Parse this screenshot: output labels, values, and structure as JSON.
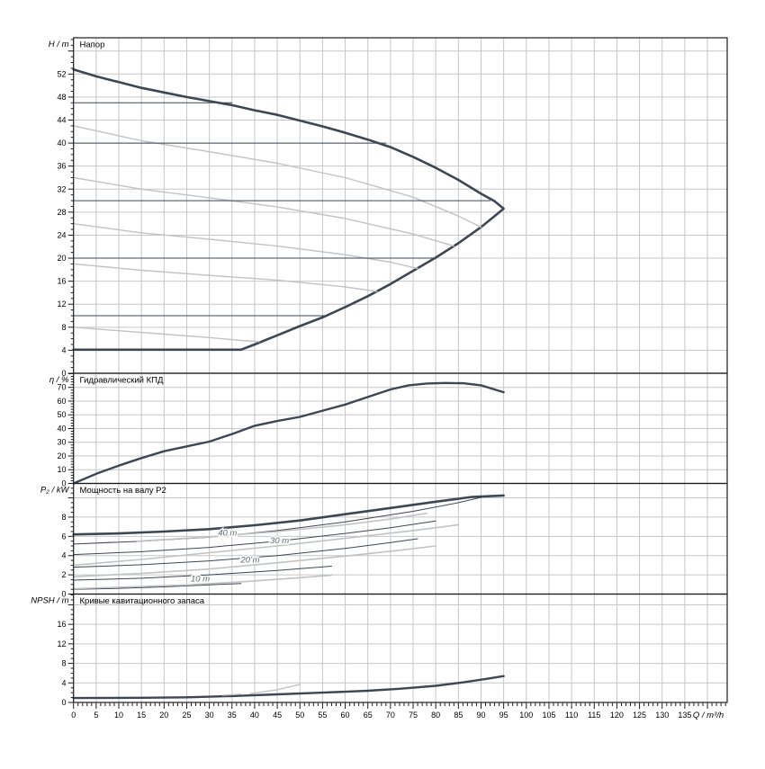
{
  "window": {
    "background": "#ffffff"
  },
  "colors": {
    "grid": "#c6c6c6",
    "border": "#1b1b1b",
    "tick": "#1b1b1b",
    "text": "#000000",
    "dark": "#3d4754",
    "gray": "#c2c2c2",
    "curve_label": "#5f6770"
  },
  "x_axis": {
    "label": "Q / m³/h",
    "min": 0,
    "max": 144.5,
    "major_step": 5,
    "minor_step": 1,
    "label_min": 0,
    "label_max": 135
  },
  "chart_data": [
    {
      "id": "head",
      "type": "line",
      "title": "Напор",
      "ylabel": "H / m",
      "ylim": [
        0,
        58.3
      ],
      "grid_step": 4,
      "label_step": 4,
      "label_max": 52,
      "minor_step": 1,
      "series": [
        {
          "name": "operating-envelope",
          "color": "dark",
          "width": 2.6,
          "points": [
            [
              0,
              52.8
            ],
            [
              5,
              51.6
            ],
            [
              10,
              50.6
            ],
            [
              15,
              49.6
            ],
            [
              20,
              48.8
            ],
            [
              25,
              48.0
            ],
            [
              30,
              47.3
            ],
            [
              35,
              46.6
            ],
            [
              40,
              45.7
            ],
            [
              45,
              44.9
            ],
            [
              50,
              43.9
            ],
            [
              55,
              42.9
            ],
            [
              60,
              41.8
            ],
            [
              65,
              40.6
            ],
            [
              70,
              39.3
            ],
            [
              75,
              37.6
            ],
            [
              80,
              35.7
            ],
            [
              85,
              33.6
            ],
            [
              90,
              31.2
            ],
            [
              93,
              29.9
            ],
            [
              95,
              28.6
            ],
            [
              93,
              27.3
            ],
            [
              90,
              25.4
            ],
            [
              85,
              22.6
            ],
            [
              80,
              20.1
            ],
            [
              75,
              17.8
            ],
            [
              70,
              15.5
            ],
            [
              65,
              13.4
            ],
            [
              60,
              11.5
            ],
            [
              55,
              9.7
            ],
            [
              50,
              8.2
            ],
            [
              45,
              6.6
            ],
            [
              40,
              5.0
            ],
            [
              37,
              4.1
            ],
            [
              30,
              4.1
            ],
            [
              20,
              4.1
            ],
            [
              10,
              4.1
            ],
            [
              0,
              4.1
            ]
          ]
        },
        {
          "name": "speed-curve-1",
          "color": "gray",
          "width": 1.4,
          "points": [
            [
              0,
              43
            ],
            [
              15,
              40.4
            ],
            [
              30,
              38.5
            ],
            [
              45,
              36.5
            ],
            [
              60,
              34
            ],
            [
              75,
              30.6
            ],
            [
              85,
              27.3
            ],
            [
              90,
              25.4
            ]
          ]
        },
        {
          "name": "speed-curve-2",
          "color": "gray",
          "width": 1.4,
          "points": [
            [
              0,
              34
            ],
            [
              15,
              32
            ],
            [
              30,
              30.5
            ],
            [
              45,
              28.9
            ],
            [
              60,
              26.9
            ],
            [
              75,
              24.2
            ],
            [
              84,
              22.1
            ]
          ]
        },
        {
          "name": "speed-curve-3",
          "color": "gray",
          "width": 1.4,
          "points": [
            [
              0,
              26
            ],
            [
              15,
              24.4
            ],
            [
              30,
              23.3
            ],
            [
              45,
              22.1
            ],
            [
              60,
              20.6
            ],
            [
              70,
              19.3
            ],
            [
              76,
              18.2
            ]
          ]
        },
        {
          "name": "speed-curve-4",
          "color": "gray",
          "width": 1.4,
          "points": [
            [
              0,
              19
            ],
            [
              15,
              17.9
            ],
            [
              30,
              17
            ],
            [
              45,
              16.2
            ],
            [
              60,
              15
            ],
            [
              67,
              14.2
            ]
          ]
        },
        {
          "name": "speed-curve-5",
          "color": "gray",
          "width": 1.4,
          "points": [
            [
              0,
              8
            ],
            [
              10,
              7.4
            ],
            [
              20,
              6.8
            ],
            [
              30,
              6.2
            ],
            [
              37,
              5.7
            ],
            [
              41,
              5.5
            ]
          ]
        },
        {
          "name": "head-limit-47m",
          "color": "dark",
          "width": 1,
          "points": [
            [
              0,
              47
            ],
            [
              35,
              47
            ]
          ]
        },
        {
          "name": "head-limit-40m",
          "color": "dark",
          "width": 1,
          "points": [
            [
              0,
              40
            ],
            [
              69,
              40
            ]
          ]
        },
        {
          "name": "head-limit-30m",
          "color": "dark",
          "width": 1,
          "points": [
            [
              0,
              30
            ],
            [
              92,
              30
            ]
          ]
        },
        {
          "name": "head-limit-20m",
          "color": "dark",
          "width": 1,
          "points": [
            [
              0,
              20
            ],
            [
              79.5,
              20
            ]
          ]
        },
        {
          "name": "head-limit-10m",
          "color": "dark",
          "width": 1,
          "points": [
            [
              0,
              10
            ],
            [
              55.5,
              10
            ]
          ]
        }
      ]
    },
    {
      "id": "efficiency",
      "type": "line",
      "title": "Гидравлический КПД",
      "ylabel": "η / %",
      "ylim": [
        0,
        80.3
      ],
      "grid_step": 10,
      "label_step": 10,
      "label_max": 70,
      "minor_step": 2,
      "series": [
        {
          "name": "efficiency-curve",
          "color": "dark",
          "width": 2.4,
          "points": [
            [
              0,
              0
            ],
            [
              5,
              7
            ],
            [
              10,
              13
            ],
            [
              15,
              18.5
            ],
            [
              20,
              23.5
            ],
            [
              25,
              27
            ],
            [
              30,
              30.5
            ],
            [
              35,
              36
            ],
            [
              40,
              42
            ],
            [
              45,
              45.5
            ],
            [
              50,
              48.5
            ],
            [
              55,
              53
            ],
            [
              60,
              57.5
            ],
            [
              65,
              63
            ],
            [
              70,
              68.5
            ],
            [
              74,
              71.5
            ],
            [
              78,
              72.8
            ],
            [
              82,
              73.2
            ],
            [
              86,
              73
            ],
            [
              90,
              71.5
            ],
            [
              95,
              66.5
            ]
          ]
        }
      ]
    },
    {
      "id": "power",
      "type": "line",
      "title": "Мощность на валу P2",
      "ylabel": "P₂ / kW",
      "ylim": [
        0,
        11.5
      ],
      "grid_step": 2,
      "label_step": 2,
      "label_max": 8,
      "minor_step": 0.5,
      "series": [
        {
          "name": "power-max-speed",
          "color": "dark",
          "width": 2.6,
          "points": [
            [
              0,
              6.2
            ],
            [
              10,
              6.3
            ],
            [
              20,
              6.5
            ],
            [
              30,
              6.75
            ],
            [
              40,
              7.15
            ],
            [
              50,
              7.65
            ],
            [
              60,
              8.3
            ],
            [
              70,
              8.95
            ],
            [
              80,
              9.6
            ],
            [
              88,
              10.1
            ],
            [
              95,
              10.25
            ]
          ]
        },
        {
          "name": "power-speed-2",
          "color": "dark",
          "width": 1,
          "points": [
            [
              0,
              5.2
            ],
            [
              15,
              5.5
            ],
            [
              30,
              5.9
            ],
            [
              45,
              6.6
            ],
            [
              60,
              7.5
            ],
            [
              75,
              8.6
            ],
            [
              85,
              9.5
            ],
            [
              91,
              10.15
            ]
          ]
        },
        {
          "name": "power-speed-3",
          "color": "dark",
          "width": 1,
          "points": [
            [
              0,
              4.1
            ],
            [
              15,
              4.4
            ],
            [
              30,
              4.85
            ],
            [
              45,
              5.5
            ],
            [
              60,
              6.3
            ],
            [
              70,
              6.9
            ],
            [
              80,
              7.6
            ]
          ]
        },
        {
          "name": "power-speed-4",
          "color": "dark",
          "width": 1,
          "points": [
            [
              0,
              2.8
            ],
            [
              15,
              3.05
            ],
            [
              30,
              3.45
            ],
            [
              45,
              4.0
            ],
            [
              60,
              4.75
            ],
            [
              70,
              5.35
            ],
            [
              76,
              5.75
            ]
          ]
        },
        {
          "name": "power-speed-5",
          "color": "dark",
          "width": 1,
          "points": [
            [
              0,
              1.45
            ],
            [
              15,
              1.65
            ],
            [
              30,
              2.0
            ],
            [
              45,
              2.45
            ],
            [
              57,
              2.9
            ]
          ]
        },
        {
          "name": "power-speed-6",
          "color": "dark",
          "width": 1,
          "points": [
            [
              0,
              0.5
            ],
            [
              10,
              0.6
            ],
            [
              20,
              0.75
            ],
            [
              30,
              0.95
            ],
            [
              37,
              1.1
            ]
          ]
        },
        {
          "name": "power-head-40m",
          "color": "gray",
          "width": 1.6,
          "points": [
            [
              14,
              5.5
            ],
            [
              30,
              5.95
            ],
            [
              45,
              6.5
            ],
            [
              60,
              7.2
            ],
            [
              70,
              7.8
            ],
            [
              78,
              8.4
            ]
          ]
        },
        {
          "name": "power-head-30m",
          "color": "gray",
          "width": 1.6,
          "points": [
            [
              0,
              3.0
            ],
            [
              15,
              3.6
            ],
            [
              30,
              4.3
            ],
            [
              45,
              5.0
            ],
            [
              60,
              5.8
            ],
            [
              75,
              6.6
            ],
            [
              85,
              7.2
            ]
          ]
        },
        {
          "name": "power-head-20m",
          "color": "gray",
          "width": 1.6,
          "points": [
            [
              0,
              1.8
            ],
            [
              15,
              2.15
            ],
            [
              30,
              2.6
            ],
            [
              45,
              3.25
            ],
            [
              60,
              3.95
            ],
            [
              72,
              4.55
            ],
            [
              80,
              5.0
            ]
          ]
        },
        {
          "name": "power-head-10m",
          "color": "gray",
          "width": 1.6,
          "points": [
            [
              0,
              0.55
            ],
            [
              12,
              0.75
            ],
            [
              25,
              0.95
            ],
            [
              38,
              1.3
            ],
            [
              50,
              1.7
            ],
            [
              57,
              1.95
            ]
          ]
        }
      ],
      "curve_labels": [
        {
          "text": "40 m",
          "q": 34,
          "v": 6.3
        },
        {
          "text": "30 m",
          "q": 45.5,
          "v": 5.5
        },
        {
          "text": "20 m",
          "q": 39,
          "v": 3.5
        },
        {
          "text": "10 m",
          "q": 28,
          "v": 1.55
        }
      ]
    },
    {
      "id": "npsh",
      "type": "line",
      "title": "Кривые кавитационного запаса",
      "ylabel": "NPSH / m",
      "ylim": [
        0,
        22.2
      ],
      "grid_step": 4,
      "label_step": 4,
      "label_max": 16,
      "minor_step": 1,
      "series": [
        {
          "name": "npsh-curve",
          "color": "dark",
          "width": 2.4,
          "points": [
            [
              0,
              0.9
            ],
            [
              15,
              0.95
            ],
            [
              25,
              1.05
            ],
            [
              35,
              1.3
            ],
            [
              45,
              1.65
            ],
            [
              55,
              2.0
            ],
            [
              65,
              2.4
            ],
            [
              72,
              2.8
            ],
            [
              80,
              3.4
            ],
            [
              86,
              4.1
            ],
            [
              91,
              4.8
            ],
            [
              95,
              5.4
            ]
          ]
        },
        {
          "name": "npsh-gray-segment-1",
          "color": "gray",
          "width": 1.4,
          "points": [
            [
              33,
              1.5
            ],
            [
              37,
              1.7
            ]
          ]
        },
        {
          "name": "npsh-gray-segment-2",
          "color": "gray",
          "width": 1.4,
          "points": [
            [
              39,
              1.8
            ],
            [
              45,
              2.6
            ],
            [
              50,
              3.7
            ]
          ]
        }
      ]
    }
  ]
}
